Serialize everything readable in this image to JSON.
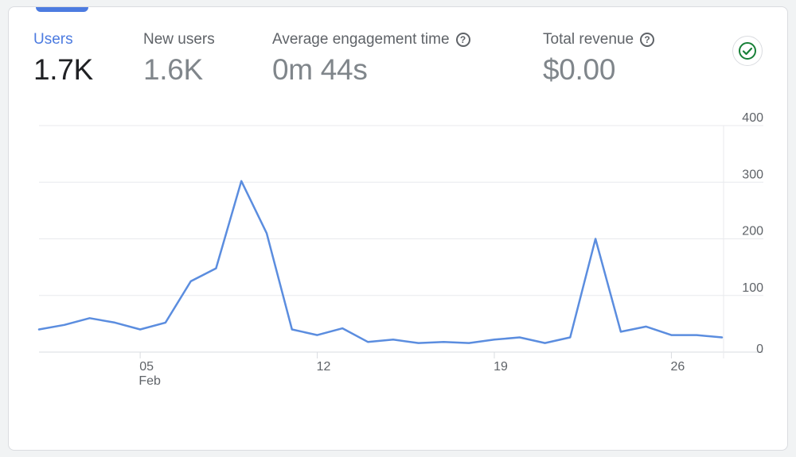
{
  "metrics": [
    {
      "label": "Users",
      "value": "1.7K",
      "help": false,
      "active": true
    },
    {
      "label": "New users",
      "value": "1.6K",
      "help": false,
      "active": false
    },
    {
      "label": "Average engagement time",
      "value": "0m 44s",
      "help": true,
      "active": false
    },
    {
      "label": "Total revenue",
      "value": "$0.00",
      "help": true,
      "active": false
    }
  ],
  "status_icon": "check-circle-icon",
  "colors": {
    "accent": "#4c7be0",
    "line": "#5b8ddf",
    "status": "#188038"
  },
  "chart_data": {
    "type": "line",
    "x_ticks": [
      {
        "day": 5,
        "label": "05",
        "sublabel": "Feb"
      },
      {
        "day": 12,
        "label": "12",
        "sublabel": ""
      },
      {
        "day": 19,
        "label": "19",
        "sublabel": ""
      },
      {
        "day": 26,
        "label": "26",
        "sublabel": ""
      }
    ],
    "y_ticks": [
      0,
      100,
      200,
      300,
      400
    ],
    "ylim": [
      0,
      400
    ],
    "xlim": [
      1,
      28
    ],
    "series": [
      {
        "x": [
          1,
          2,
          3,
          4,
          5,
          6,
          7,
          8,
          9,
          10,
          11,
          12,
          13,
          14,
          15,
          16,
          17,
          18,
          19,
          20,
          21,
          22,
          23,
          24,
          25,
          26,
          27,
          28
        ],
        "values": [
          40,
          48,
          60,
          52,
          40,
          52,
          125,
          148,
          302,
          210,
          40,
          30,
          42,
          18,
          22,
          16,
          18,
          16,
          22,
          26,
          16,
          26,
          200,
          36,
          45,
          30,
          30,
          26
        ]
      }
    ]
  }
}
